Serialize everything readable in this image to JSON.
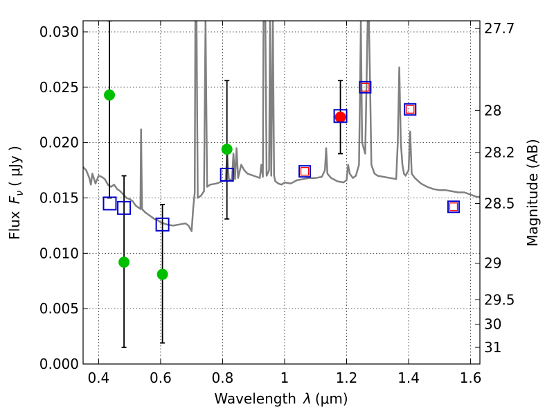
{
  "chart_data": {
    "type": "scatter",
    "xlabel_text": "Wavelength",
    "xlabel_symbol": "λ",
    "xlabel_unit": "(μm)",
    "ylabel_text": "Flux",
    "ylabel_symbol": "F",
    "ylabel_sub": "ν",
    "ylabel_unit": "( μJy )",
    "y2label": "Magnitude (AB)",
    "xlim": [
      0.35,
      1.63
    ],
    "ylim": [
      0.0,
      0.031
    ],
    "x_ticks": [
      0.4,
      0.6,
      0.8,
      1.0,
      1.2,
      1.4,
      1.6
    ],
    "x_tick_labels": [
      "0.4",
      "0.6",
      "0.8",
      "1",
      "1.2",
      "1.4",
      "1.6"
    ],
    "y_ticks": [
      0.0,
      0.005,
      0.01,
      0.015,
      0.02,
      0.025,
      0.03
    ],
    "y_tick_labels": [
      "0.000",
      "0.005",
      "0.010",
      "0.015",
      "0.020",
      "0.025",
      "0.030"
    ],
    "mag_ticks": [
      {
        "label": "27.7",
        "flux": 0.0303
      },
      {
        "label": "28",
        "flux": 0.0229
      },
      {
        "label": "28.2",
        "flux": 0.0191
      },
      {
        "label": "28.5",
        "flux": 0.0145
      },
      {
        "label": "29",
        "flux": 0.0091
      },
      {
        "label": "29.5",
        "flux": 0.0058
      },
      {
        "label": "30",
        "flux": 0.0036
      },
      {
        "label": "31",
        "flux": 0.0015
      }
    ],
    "grid": true,
    "series": [
      {
        "name": "model spectrum",
        "kind": "line",
        "color": "#808080",
        "points": [
          [
            0.35,
            0.0178
          ],
          [
            0.36,
            0.0175
          ],
          [
            0.37,
            0.0168
          ],
          [
            0.375,
            0.0162
          ],
          [
            0.38,
            0.0172
          ],
          [
            0.39,
            0.0163
          ],
          [
            0.4,
            0.017
          ],
          [
            0.41,
            0.0169
          ],
          [
            0.42,
            0.0167
          ],
          [
            0.43,
            0.0162
          ],
          [
            0.44,
            0.016
          ],
          [
            0.45,
            0.0162
          ],
          [
            0.46,
            0.0158
          ],
          [
            0.47,
            0.0156
          ],
          [
            0.48,
            0.0153
          ],
          [
            0.49,
            0.015
          ],
          [
            0.5,
            0.0149
          ],
          [
            0.51,
            0.0147
          ],
          [
            0.52,
            0.0143
          ],
          [
            0.53,
            0.0141
          ],
          [
            0.535,
            0.014
          ],
          [
            0.537,
            0.0212
          ],
          [
            0.54,
            0.014
          ],
          [
            0.55,
            0.0137
          ],
          [
            0.56,
            0.0135
          ],
          [
            0.57,
            0.0133
          ],
          [
            0.58,
            0.0131
          ],
          [
            0.59,
            0.013
          ],
          [
            0.6,
            0.0128
          ],
          [
            0.62,
            0.0126
          ],
          [
            0.64,
            0.0125
          ],
          [
            0.66,
            0.0126
          ],
          [
            0.68,
            0.0127
          ],
          [
            0.69,
            0.0125
          ],
          [
            0.7,
            0.012
          ],
          [
            0.705,
            0.014
          ],
          [
            0.71,
            0.0155
          ],
          [
            0.712,
            0.031
          ],
          [
            0.716,
            0.031
          ],
          [
            0.72,
            0.015
          ],
          [
            0.73,
            0.0152
          ],
          [
            0.74,
            0.0156
          ],
          [
            0.745,
            0.031
          ],
          [
            0.75,
            0.016
          ],
          [
            0.76,
            0.0162
          ],
          [
            0.78,
            0.0163
          ],
          [
            0.8,
            0.0165
          ],
          [
            0.81,
            0.0166
          ],
          [
            0.815,
            0.019
          ],
          [
            0.82,
            0.0167
          ],
          [
            0.83,
            0.0166
          ],
          [
            0.835,
            0.019
          ],
          [
            0.84,
            0.0167
          ],
          [
            0.845,
            0.0195
          ],
          [
            0.85,
            0.0168
          ],
          [
            0.86,
            0.018
          ],
          [
            0.87,
            0.0175
          ],
          [
            0.88,
            0.0172
          ],
          [
            0.9,
            0.017
          ],
          [
            0.92,
            0.0168
          ],
          [
            0.925,
            0.018
          ],
          [
            0.93,
            0.0169
          ],
          [
            0.932,
            0.031
          ],
          [
            0.938,
            0.031
          ],
          [
            0.942,
            0.017
          ],
          [
            0.95,
            0.0175
          ],
          [
            0.953,
            0.031
          ],
          [
            0.957,
            0.017
          ],
          [
            0.962,
            0.031
          ],
          [
            0.966,
            0.017
          ],
          [
            0.97,
            0.0165
          ],
          [
            0.98,
            0.0163
          ],
          [
            0.99,
            0.0162
          ],
          [
            1.0,
            0.0164
          ],
          [
            1.02,
            0.0163
          ],
          [
            1.04,
            0.0166
          ],
          [
            1.06,
            0.0167
          ],
          [
            1.08,
            0.0168
          ],
          [
            1.1,
            0.0168
          ],
          [
            1.12,
            0.0169
          ],
          [
            1.13,
            0.0175
          ],
          [
            1.134,
            0.0195
          ],
          [
            1.138,
            0.0172
          ],
          [
            1.15,
            0.0168
          ],
          [
            1.17,
            0.0165
          ],
          [
            1.19,
            0.0164
          ],
          [
            1.2,
            0.0166
          ],
          [
            1.205,
            0.018
          ],
          [
            1.21,
            0.0172
          ],
          [
            1.22,
            0.0168
          ],
          [
            1.23,
            0.017
          ],
          [
            1.24,
            0.018
          ],
          [
            1.243,
            0.024
          ],
          [
            1.246,
            0.031
          ],
          [
            1.25,
            0.02
          ],
          [
            1.26,
            0.019
          ],
          [
            1.264,
            0.025
          ],
          [
            1.268,
            0.031
          ],
          [
            1.272,
            0.031
          ],
          [
            1.276,
            0.025
          ],
          [
            1.28,
            0.018
          ],
          [
            1.29,
            0.0172
          ],
          [
            1.3,
            0.017
          ],
          [
            1.32,
            0.0169
          ],
          [
            1.34,
            0.0168
          ],
          [
            1.36,
            0.0167
          ],
          [
            1.365,
            0.02
          ],
          [
            1.37,
            0.0268
          ],
          [
            1.375,
            0.02
          ],
          [
            1.38,
            0.018
          ],
          [
            1.385,
            0.0172
          ],
          [
            1.39,
            0.017
          ],
          [
            1.4,
            0.0175
          ],
          [
            1.405,
            0.021
          ],
          [
            1.41,
            0.0172
          ],
          [
            1.42,
            0.0168
          ],
          [
            1.44,
            0.0163
          ],
          [
            1.46,
            0.016
          ],
          [
            1.48,
            0.0158
          ],
          [
            1.5,
            0.0157
          ],
          [
            1.52,
            0.0157
          ],
          [
            1.54,
            0.0156
          ],
          [
            1.56,
            0.0155
          ],
          [
            1.58,
            0.0155
          ],
          [
            1.6,
            0.0153
          ],
          [
            1.62,
            0.0151
          ],
          [
            1.63,
            0.0151
          ]
        ]
      },
      {
        "name": "observed (green)",
        "kind": "points",
        "color": "#00bf00",
        "points": [
          {
            "x": 0.435,
            "y": 0.0243,
            "err": [
              0.015,
              0.031
            ]
          },
          {
            "x": 0.482,
            "y": 0.0092,
            "err": [
              0.0015,
              0.017
            ]
          },
          {
            "x": 0.606,
            "y": 0.0081,
            "err": [
              0.0019,
              0.0144
            ]
          },
          {
            "x": 0.814,
            "y": 0.0194,
            "err": [
              0.0131,
              0.0256
            ]
          }
        ]
      },
      {
        "name": "observed (red)",
        "kind": "points",
        "color": "#ff0000",
        "points": [
          {
            "x": 1.18,
            "y": 0.0223,
            "err": [
              0.019,
              0.0256
            ]
          }
        ]
      },
      {
        "name": "model photometry (blue squares)",
        "kind": "squares",
        "color": "#0000cc",
        "points": [
          {
            "x": 0.436,
            "y": 0.0145
          },
          {
            "x": 0.482,
            "y": 0.0141
          },
          {
            "x": 0.606,
            "y": 0.0126
          },
          {
            "x": 0.814,
            "y": 0.0171
          },
          {
            "x": 1.18,
            "y": 0.0224
          }
        ]
      },
      {
        "name": "model photometry (red/blue squares)",
        "kind": "double-squares",
        "color": "#0000cc",
        "inner_color": "#ff0000",
        "points": [
          {
            "x": 1.065,
            "y": 0.0174
          },
          {
            "x": 1.26,
            "y": 0.025
          },
          {
            "x": 1.405,
            "y": 0.023
          },
          {
            "x": 1.545,
            "y": 0.0142
          }
        ]
      }
    ]
  }
}
